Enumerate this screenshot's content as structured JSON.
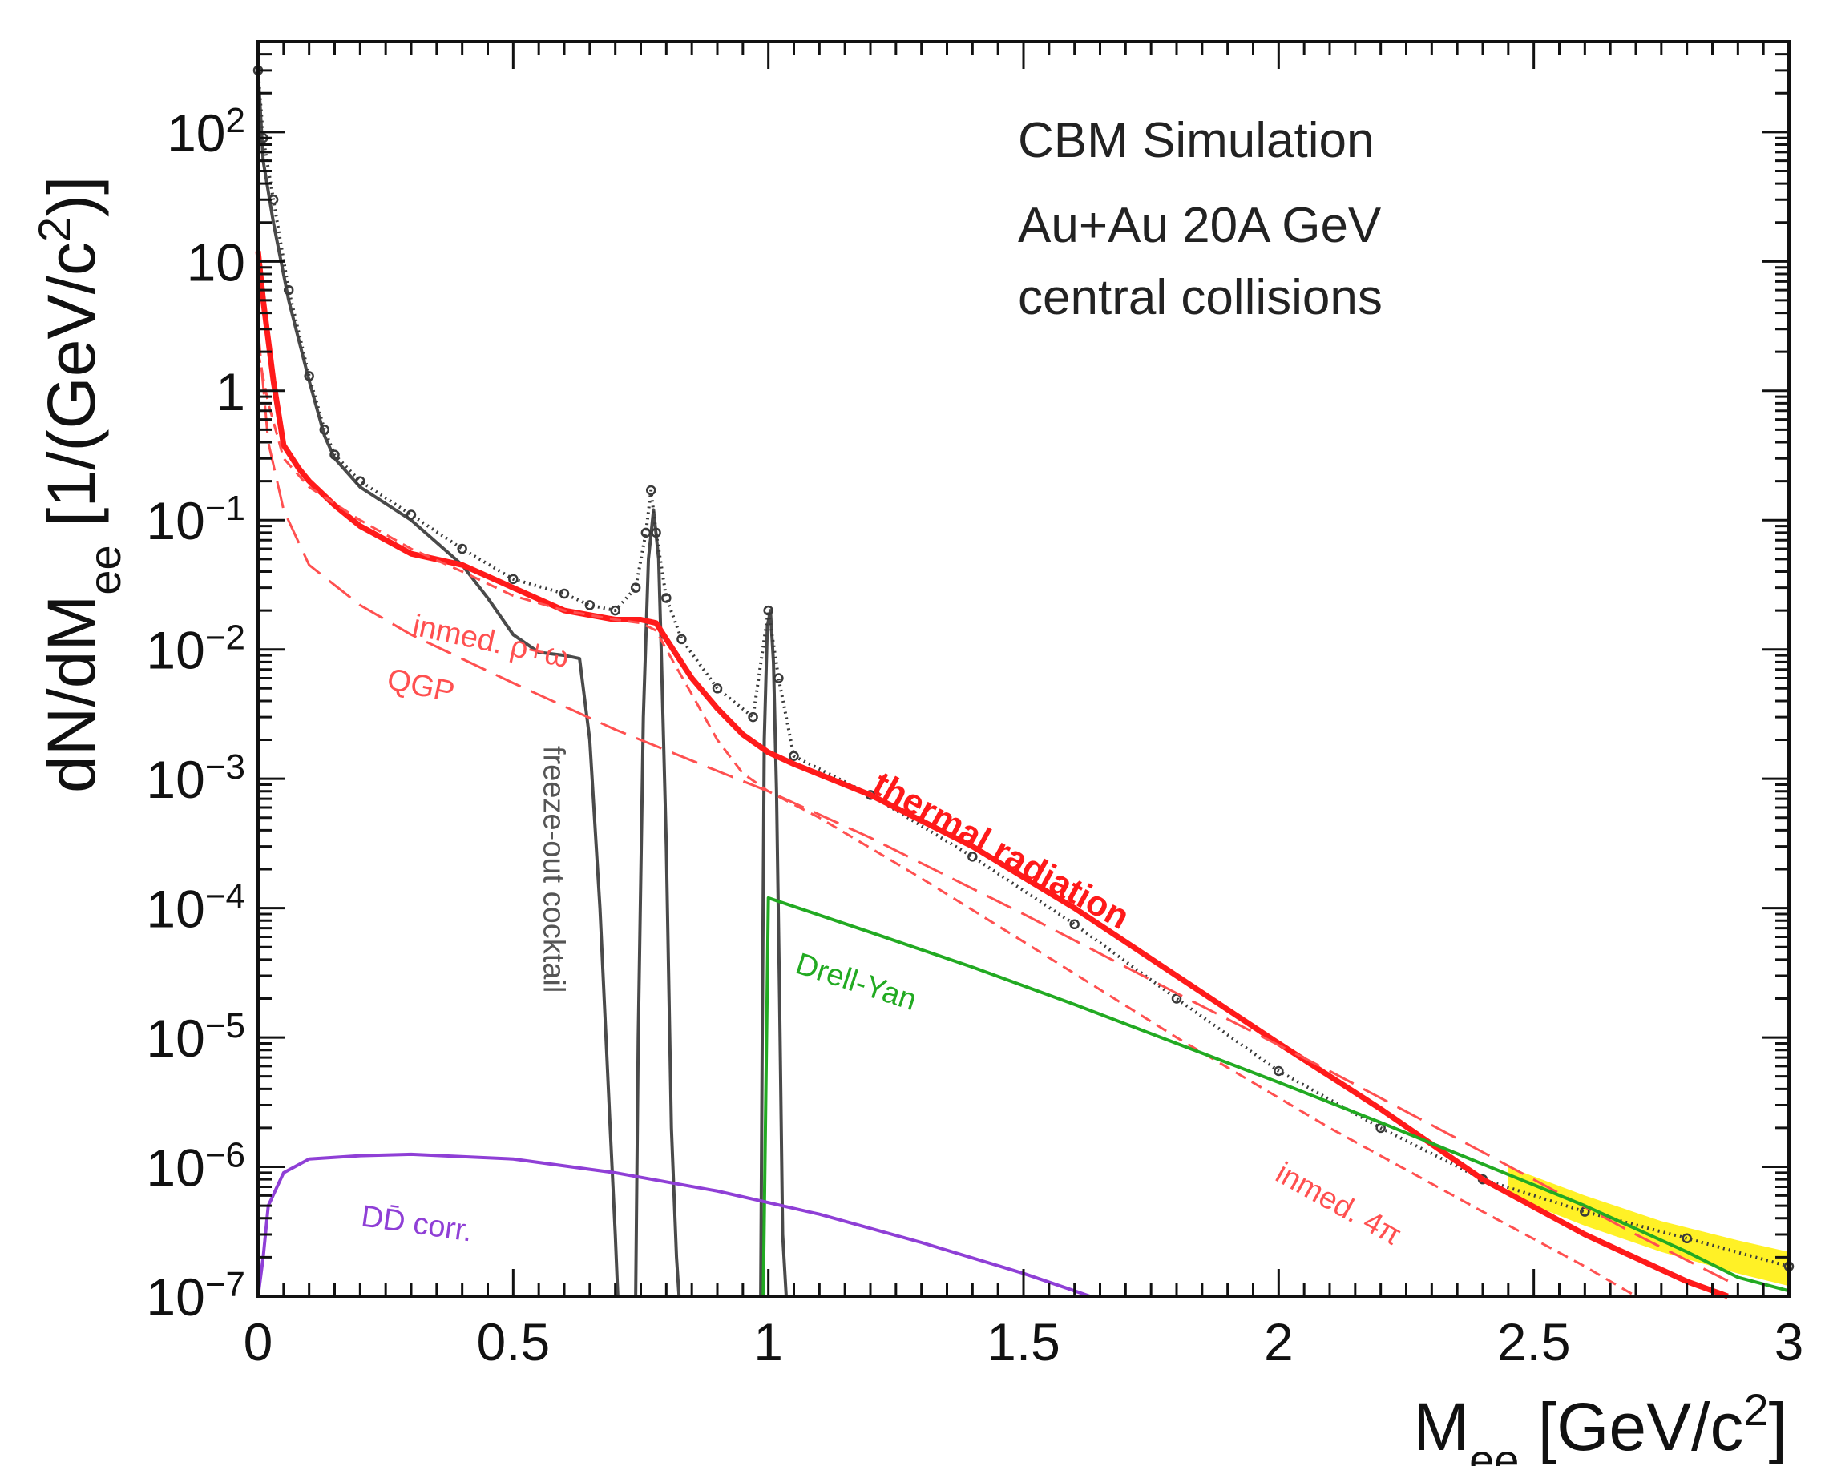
{
  "chart_data": {
    "type": "line",
    "title_lines": [
      "CBM Simulation",
      "Au+Au 20A GeV",
      "central collisions"
    ],
    "xlabel": {
      "base": "M",
      "sub": "ee",
      "unit_pre": " [GeV/c",
      "sup": "2",
      "unit_post": "]"
    },
    "ylabel": {
      "pre": "dN/dM",
      "sub": "ee",
      "mid": " [1/(GeV/c",
      "sup": "2",
      "post": ")]"
    },
    "xlim": [
      0,
      3
    ],
    "ylim": [
      1e-07,
      500
    ],
    "yscale": "log",
    "x_ticks": [
      {
        "v": 0,
        "label": "0"
      },
      {
        "v": 0.5,
        "label": "0.5"
      },
      {
        "v": 1,
        "label": "1"
      },
      {
        "v": 1.5,
        "label": "1.5"
      },
      {
        "v": 2,
        "label": "2"
      },
      {
        "v": 2.5,
        "label": "2.5"
      },
      {
        "v": 3,
        "label": "3"
      }
    ],
    "y_ticks": [
      {
        "exp": -7,
        "base": "10",
        "sup": "−7"
      },
      {
        "exp": -6,
        "base": "10",
        "sup": "−6"
      },
      {
        "exp": -5,
        "base": "10",
        "sup": "−5"
      },
      {
        "exp": -4,
        "base": "10",
        "sup": "−4"
      },
      {
        "exp": -3,
        "base": "10",
        "sup": "−3"
      },
      {
        "exp": -2,
        "base": "10",
        "sup": "−2"
      },
      {
        "exp": -1,
        "base": "10",
        "sup": "−1"
      },
      {
        "exp": 0,
        "base": "1",
        "sup": ""
      },
      {
        "exp": 1,
        "base": "10",
        "sup": ""
      },
      {
        "exp": 2,
        "base": "10",
        "sup": "2"
      }
    ],
    "series": [
      {
        "name": "freeze-out cocktail",
        "color": "#4a4a4a",
        "style": "solid",
        "x": [
          0.0,
          0.01,
          0.03,
          0.06,
          0.1,
          0.13,
          0.15,
          0.2,
          0.3,
          0.4,
          0.45,
          0.5,
          0.55,
          0.6,
          0.63,
          0.65,
          0.67,
          0.69,
          0.7,
          0.705,
          0.74,
          0.745,
          0.755,
          0.765,
          0.775,
          0.785,
          0.79,
          0.8,
          0.81,
          0.82,
          0.825,
          0.985,
          0.988,
          0.992,
          0.998,
          1.004,
          1.01,
          1.016,
          1.022,
          1.028,
          1.035
        ],
        "y": [
          300,
          60,
          20,
          5,
          1.2,
          0.45,
          0.3,
          0.18,
          0.1,
          0.045,
          0.025,
          0.013,
          0.0095,
          0.009,
          0.0085,
          0.002,
          0.0001,
          2e-06,
          3e-07,
          1e-07,
          1e-07,
          1e-05,
          0.003,
          0.05,
          0.12,
          0.05,
          0.01,
          0.0003,
          2e-06,
          2e-07,
          1e-07,
          1e-07,
          1e-05,
          0.002,
          0.015,
          0.02,
          0.008,
          0.0008,
          2e-05,
          3e-07,
          1e-07
        ]
      },
      {
        "name": "sum (data points)",
        "color": "#3a3a3a",
        "style": "markers",
        "x": [
          0.0,
          0.01,
          0.03,
          0.06,
          0.1,
          0.13,
          0.15,
          0.2,
          0.3,
          0.4,
          0.5,
          0.6,
          0.65,
          0.7,
          0.74,
          0.76,
          0.77,
          0.78,
          0.8,
          0.83,
          0.9,
          0.97,
          1.0,
          1.02,
          1.05,
          1.2,
          1.4,
          1.6,
          1.8,
          2.0,
          2.2,
          2.4,
          2.6,
          2.8,
          3.0
        ],
        "y": [
          300,
          90,
          30,
          6,
          1.3,
          0.5,
          0.32,
          0.2,
          0.11,
          0.06,
          0.035,
          0.027,
          0.022,
          0.02,
          0.03,
          0.08,
          0.17,
          0.08,
          0.025,
          0.012,
          0.005,
          0.003,
          0.02,
          0.006,
          0.0015,
          0.00075,
          0.00025,
          7.5e-05,
          2e-05,
          5.5e-06,
          2e-06,
          8e-07,
          4.5e-07,
          2.8e-07,
          1.7e-07
        ]
      },
      {
        "name": "thermal radiation",
        "color": "#ff1a1a",
        "style": "solid",
        "x": [
          0.0,
          0.01,
          0.03,
          0.05,
          0.08,
          0.1,
          0.15,
          0.2,
          0.3,
          0.4,
          0.5,
          0.6,
          0.7,
          0.75,
          0.78,
          0.8,
          0.85,
          0.9,
          0.95,
          1.0,
          1.05,
          1.2,
          1.4,
          1.6,
          1.8,
          2.0,
          2.2,
          2.4,
          2.6,
          2.8,
          2.88
        ],
        "y": [
          12,
          5,
          1.2,
          0.38,
          0.25,
          0.2,
          0.13,
          0.09,
          0.055,
          0.045,
          0.03,
          0.02,
          0.017,
          0.017,
          0.016,
          0.012,
          0.006,
          0.0035,
          0.0022,
          0.0016,
          0.0013,
          0.00075,
          0.0003,
          0.0001,
          3e-05,
          9e-06,
          2.8e-06,
          8e-07,
          3e-07,
          1.3e-07,
          1e-07
        ]
      },
      {
        "name": "inmed. ρ+ω",
        "color": "#ff5050",
        "style": "dashed-short",
        "x": [
          0.0,
          0.02,
          0.05,
          0.1,
          0.2,
          0.3,
          0.4,
          0.5,
          0.6,
          0.7,
          0.75,
          0.78,
          0.8,
          0.85,
          0.9,
          0.95,
          1.0,
          1.1,
          1.3,
          1.5,
          1.8,
          2.1,
          2.4,
          2.6,
          2.7
        ],
        "y": [
          2,
          0.8,
          0.3,
          0.18,
          0.1,
          0.06,
          0.04,
          0.026,
          0.02,
          0.017,
          0.016,
          0.014,
          0.01,
          0.0045,
          0.002,
          0.0011,
          0.0008,
          0.0005,
          0.00017,
          5.5e-05,
          1e-05,
          2e-06,
          4.5e-07,
          1.7e-07,
          1e-07
        ]
      },
      {
        "name": "QGP",
        "color": "#ff5050",
        "style": "dashed-long",
        "x": [
          0.0,
          0.02,
          0.05,
          0.1,
          0.2,
          0.3,
          0.5,
          0.7,
          0.9,
          1.0,
          1.2,
          1.5,
          1.8,
          2.1,
          2.4,
          2.7,
          2.9
        ],
        "y": [
          3,
          0.4,
          0.12,
          0.045,
          0.022,
          0.013,
          0.0055,
          0.0024,
          0.00115,
          0.0008,
          0.00035,
          9e-05,
          2.2e-05,
          5.5e-06,
          1.3e-06,
          3e-07,
          1.2e-07
        ]
      },
      {
        "name": "Drell-Yan",
        "color": "#22aa22",
        "style": "solid",
        "x": [
          0.0,
          0.82,
          0.99,
          1.0,
          1.2,
          1.4,
          1.6,
          1.8,
          2.0,
          2.2,
          2.4,
          2.6,
          2.8,
          2.9,
          3.0
        ],
        "y": [
          1e-07,
          1e-07,
          1e-07,
          0.00012,
          6.5e-05,
          3.5e-05,
          1.8e-05,
          9e-06,
          4.5e-06,
          2.2e-06,
          1.05e-06,
          5e-07,
          2.2e-07,
          1.4e-07,
          1.1e-07
        ]
      },
      {
        "name": "DD̄ corr.",
        "color": "#8f3fd6",
        "style": "solid",
        "x": [
          0.0,
          0.01,
          0.02,
          0.05,
          0.1,
          0.2,
          0.3,
          0.5,
          0.7,
          0.9,
          1.1,
          1.3,
          1.5,
          1.6,
          1.63
        ],
        "y": [
          1e-07,
          2e-07,
          5e-07,
          9e-07,
          1.15e-06,
          1.22e-06,
          1.25e-06,
          1.15e-06,
          9e-07,
          6.5e-07,
          4.3e-07,
          2.6e-07,
          1.5e-07,
          1.1e-07,
          1e-07
        ]
      },
      {
        "name": "syst. uncertainty band",
        "color": "#ffee00",
        "style": "band",
        "x": [
          2.45,
          2.6,
          2.75,
          2.9,
          3.0
        ],
        "y_low": [
          6e-07,
          3.5e-07,
          2.2e-07,
          1.5e-07,
          1.2e-07
        ],
        "y_high": [
          1e-06,
          6e-07,
          3.8e-07,
          2.7e-07,
          2.2e-07
        ]
      }
    ],
    "annotations": [
      {
        "text": "inmed. ρ+ω",
        "x": 0.3,
        "y": 0.013,
        "color": "#ff5050",
        "angle": 12
      },
      {
        "text": "QGP",
        "x": 0.25,
        "y": 0.005,
        "color": "#ff5050",
        "angle": 12
      },
      {
        "text": "freeze-out cocktail",
        "x": 0.56,
        "y": 0.0018,
        "color": "#555555",
        "angle": 90
      },
      {
        "text": "thermal radiation",
        "x": 1.2,
        "y": 0.0008,
        "color": "#ff1a1a",
        "angle": 29
      },
      {
        "text": "Drell-Yan",
        "x": 1.05,
        "y": 3.2e-05,
        "color": "#22aa22",
        "angle": 18
      },
      {
        "text": "inmed. 4π",
        "x": 1.99,
        "y": 8e-07,
        "color": "#ff5050",
        "angle": 29
      },
      {
        "text": "DD̄ corr.",
        "x": 0.2,
        "y": 3.5e-07,
        "color": "#8f3fd6",
        "angle": 8
      }
    ]
  }
}
